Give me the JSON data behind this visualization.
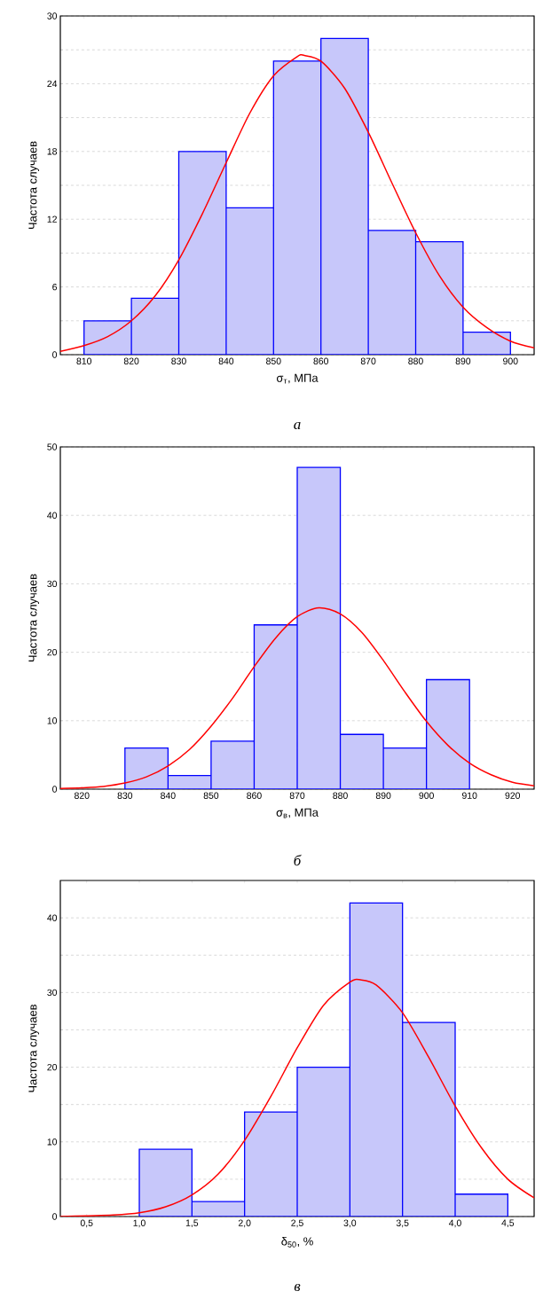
{
  "chart_data": [
    {
      "type": "histogram",
      "xlabel": "σ$_{т}$, МПа",
      "ylabel": "Частота случаев",
      "annotations": [
        "а"
      ],
      "bins": [
        810,
        820,
        830,
        840,
        850,
        860,
        870,
        880,
        890,
        900
      ],
      "xlim": [
        805,
        905
      ],
      "ylim": [
        0,
        30
      ],
      "grid": "y",
      "xticks": [
        810,
        820,
        830,
        840,
        850,
        860,
        870,
        880,
        890,
        900
      ],
      "yticks": [
        0,
        {
          "value": 3,
          "label": null
        },
        6,
        {
          "value": 9,
          "label": null
        },
        12,
        {
          "value": 15,
          "label": null
        },
        18,
        {
          "value": 21,
          "label": null
        },
        24,
        {
          "value": 27,
          "label": null
        },
        30
      ],
      "series": [
        {
          "color": "#c7c7fa",
          "values": [
            3,
            5,
            18,
            13,
            26,
            28,
            11,
            10,
            2
          ]
        },
        {
          "type": "line",
          "color": "#ff0000",
          "x": [
            805,
            810,
            815,
            820,
            825,
            830,
            835,
            840,
            845,
            850,
            855,
            856.5,
            860,
            865,
            870,
            875,
            880,
            885,
            890,
            895,
            900,
            905
          ],
          "values": [
            0.3,
            0.8,
            1.6,
            3.0,
            5.2,
            8.4,
            12.5,
            17.0,
            21.4,
            24.7,
            26.4,
            26.5,
            26.0,
            23.6,
            19.7,
            15.2,
            10.8,
            7.0,
            4.2,
            2.4,
            1.2,
            0.6
          ]
        }
      ]
    },
    {
      "type": "histogram",
      "xlabel": "σ$_{в}$, МПа",
      "ylabel": "Частота случаев",
      "annotations": [
        "б"
      ],
      "bins": [
        830,
        840,
        850,
        860,
        870,
        880,
        890,
        900,
        910
      ],
      "xlim": [
        815,
        925
      ],
      "ylim": [
        0,
        50
      ],
      "grid": "y",
      "xticks": [
        820,
        830,
        840,
        850,
        860,
        870,
        880,
        890,
        900,
        910,
        920
      ],
      "yticks": [
        0,
        10,
        20,
        30,
        40,
        50
      ],
      "series": [
        {
          "color": "#c7c7fa",
          "values": [
            6,
            2,
            7,
            24,
            47,
            8,
            6,
            16
          ]
        },
        {
          "type": "line",
          "color": "#ff0000",
          "x": [
            815,
            820,
            825,
            830,
            835,
            840,
            845,
            850,
            855,
            860,
            865,
            870,
            875,
            880,
            885,
            890,
            895,
            900,
            905,
            910,
            915,
            920,
            925
          ],
          "values": [
            0.1,
            0.2,
            0.4,
            0.9,
            1.8,
            3.4,
            5.8,
            9.2,
            13.3,
            17.9,
            22.1,
            25.2,
            26.5,
            25.6,
            22.9,
            18.8,
            14.2,
            9.9,
            6.4,
            3.8,
            2.1,
            1.0,
            0.5
          ]
        }
      ]
    },
    {
      "type": "histogram",
      "xlabel": "δ$_{50}$, %",
      "ylabel": "Частота случаев",
      "annotations": [
        "в"
      ],
      "bins": [
        1.0,
        1.5,
        2.0,
        2.5,
        3.0,
        3.5,
        4.0,
        4.5
      ],
      "xlim": [
        0.25,
        4.75
      ],
      "ylim": [
        0,
        45
      ],
      "grid": "y",
      "xticks": [
        {
          "value": 0.5,
          "label": "0,5"
        },
        {
          "value": 1.0,
          "label": "1,0"
        },
        {
          "value": 1.5,
          "label": "1,5"
        },
        {
          "value": 2.0,
          "label": "2,0"
        },
        {
          "value": 2.5,
          "label": "2,5"
        },
        {
          "value": 3.0,
          "label": "3,0"
        },
        {
          "value": 3.5,
          "label": "3,5"
        },
        {
          "value": 4.0,
          "label": "4,0"
        },
        {
          "value": 4.5,
          "label": "4,5"
        }
      ],
      "yticks": [
        0,
        {
          "value": 5,
          "label": null
        },
        10,
        {
          "value": 15,
          "label": null
        },
        20,
        {
          "value": 25,
          "label": null
        },
        30,
        {
          "value": 35,
          "label": null
        },
        40
      ],
      "series": [
        {
          "color": "#c7c7fa",
          "values": [
            9,
            2,
            14,
            20,
            42,
            26,
            3
          ]
        },
        {
          "type": "line",
          "color": "#ff0000",
          "x": [
            0.25,
            0.5,
            0.75,
            1.0,
            1.25,
            1.5,
            1.75,
            2.0,
            2.25,
            2.5,
            2.75,
            3.0,
            3.1,
            3.25,
            3.5,
            3.75,
            4.0,
            4.25,
            4.5,
            4.75
          ],
          "values": [
            0.0,
            0.1,
            0.2,
            0.5,
            1.3,
            2.9,
            5.7,
            10.2,
            16.1,
            22.6,
            28.3,
            31.4,
            31.7,
            31.0,
            27.3,
            21.3,
            14.8,
            9.2,
            5.0,
            2.5
          ]
        }
      ]
    }
  ]
}
